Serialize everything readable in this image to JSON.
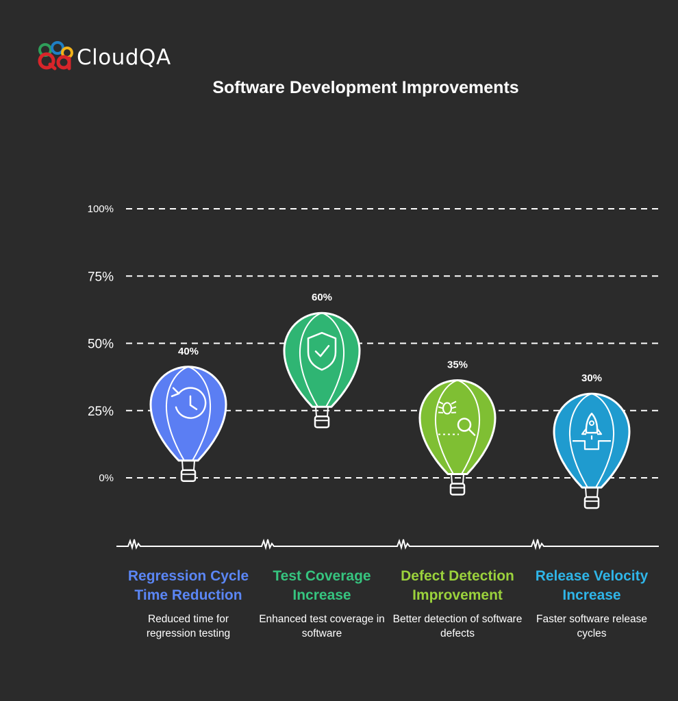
{
  "brand": {
    "name": "CloudQA",
    "colors": {
      "red": "#d8252a",
      "green": "#2f9e5a",
      "blue": "#1f7fc4",
      "gold": "#f2b21a"
    }
  },
  "chart_data": {
    "type": "bar",
    "title": "Software Development Improvements",
    "ylim": [
      0,
      100
    ],
    "yticks": [
      "0%",
      "25%",
      "50%",
      "75%",
      "100%"
    ],
    "grid": true,
    "categories": [
      "Regression Cycle Time Reduction",
      "Test Coverage Increase",
      "Defect Detection Improvement",
      "Release Velocity Increase"
    ],
    "values": [
      40,
      60,
      35,
      30
    ],
    "value_labels": [
      "40%",
      "60%",
      "35%",
      "30%"
    ],
    "descriptions": [
      "Reduced time for regression testing",
      "Enhanced test coverage in software",
      "Better detection of software defects",
      "Faster software release cycles"
    ],
    "colors": [
      "#5b7ef3",
      "#2fb573",
      "#7fbf33",
      "#1f9bcf"
    ],
    "label_colors": [
      "#5b86f5",
      "#36c47f",
      "#9bd23c",
      "#2fb5e8"
    ],
    "icons": [
      "clock-rewind-icon",
      "shield-check-icon",
      "bug-search-icon",
      "rocket-launch-icon"
    ]
  }
}
